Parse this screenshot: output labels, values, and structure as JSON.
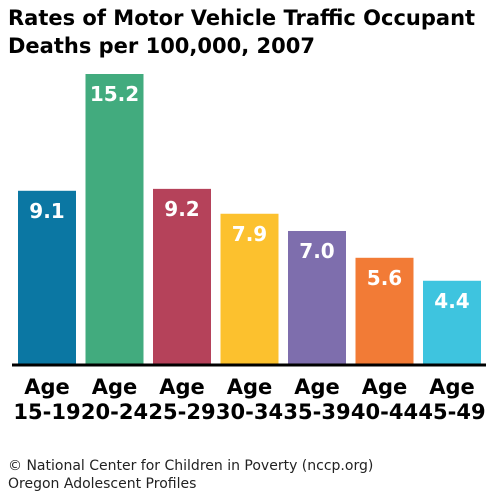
{
  "chart_data": {
    "type": "bar",
    "title": "Rates of Motor Vehicle Traffic Occupant Deaths per 100,000, 2007",
    "categories": [
      "Age 15-19",
      "Age 20-24",
      "Age 25-29",
      "Age 30-34",
      "Age 35-39",
      "Age 40-44",
      "Age 45-49"
    ],
    "category_lines": [
      [
        "Age",
        "15-19"
      ],
      [
        "Age",
        "20-24"
      ],
      [
        "Age",
        "25-29"
      ],
      [
        "Age",
        "30-34"
      ],
      [
        "Age",
        "35-39"
      ],
      [
        "Age",
        "40-44"
      ],
      [
        "Age",
        "45-49"
      ]
    ],
    "values": [
      9.1,
      15.2,
      9.2,
      7.9,
      7.0,
      5.6,
      4.4
    ],
    "value_labels": [
      "9.1",
      "15.2",
      "9.2",
      "7.9",
      "7.0",
      "5.6",
      "4.4"
    ],
    "colors": [
      "#0b77a3",
      "#42ab7e",
      "#b5425a",
      "#fcc12e",
      "#7e6ead",
      "#f27b36",
      "#3ec4df"
    ],
    "xlabel": "",
    "ylabel": "",
    "ylim": [
      0,
      15.2
    ],
    "grid": false,
    "legend": "none"
  },
  "footer": {
    "line1": "© National Center for Children in Poverty (nccp.org)",
    "line2": "Oregon Adolescent Profiles"
  }
}
